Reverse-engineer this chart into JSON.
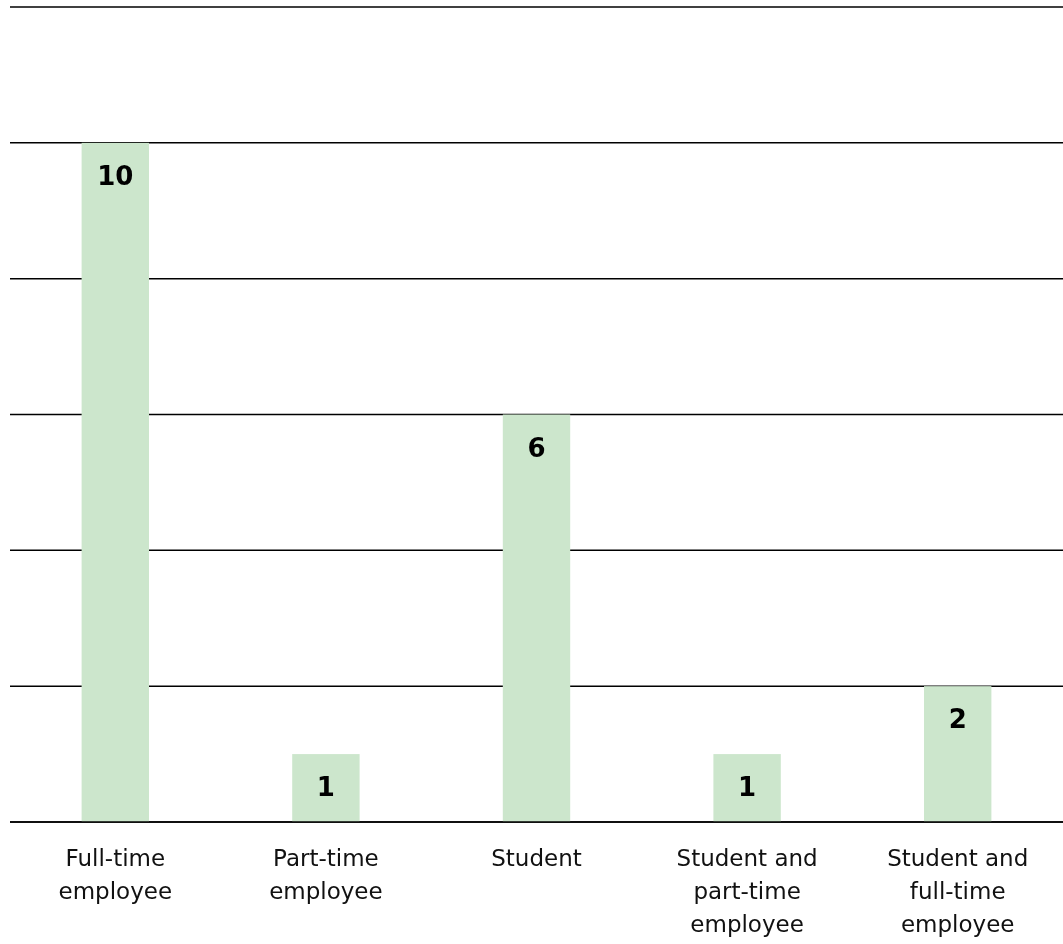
{
  "chart_data": {
    "type": "bar",
    "categories": [
      "Full-time employee",
      "Part-time employee",
      "Student",
      "Student and part-time employee",
      "Student and full-time employee"
    ],
    "values": [
      10,
      1,
      6,
      1,
      2
    ],
    "color": "#cce6cc",
    "ylim": [
      0,
      12
    ],
    "yticks": [
      0,
      2,
      4,
      6,
      8,
      10,
      12
    ],
    "grid": "y",
    "tick_labels": "x",
    "data_labels": true
  }
}
